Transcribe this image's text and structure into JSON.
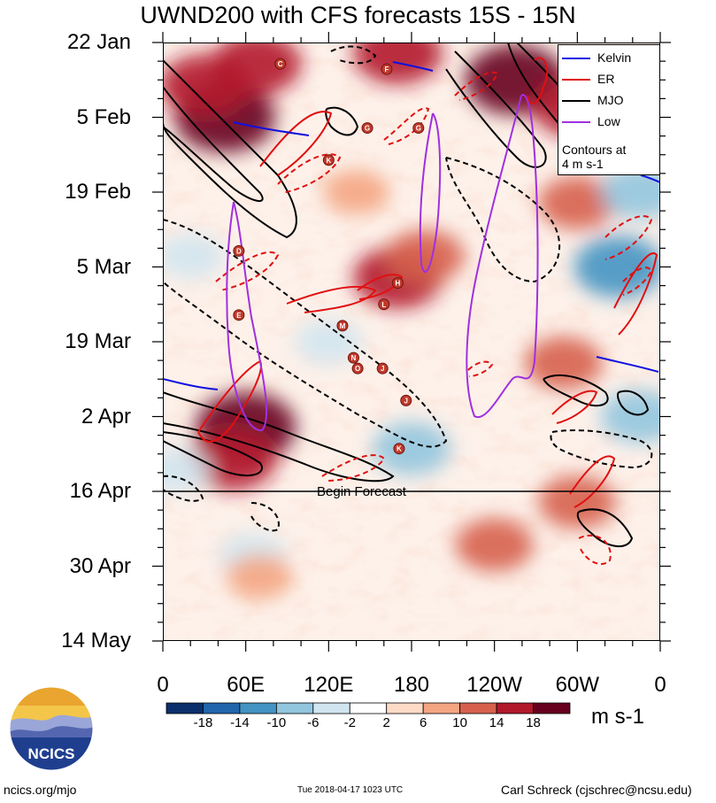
{
  "chart_data": {
    "type": "heatmap",
    "title": "UWND200 with CFS forecasts  15S - 15N",
    "xlabel": "",
    "ylabel": "",
    "x_ticks": [
      "0",
      "60E",
      "120E",
      "180",
      "120W",
      "60W",
      "0"
    ],
    "x_range_deg": [
      0,
      360
    ],
    "y_ticks": [
      "22 Jan",
      "5 Feb",
      "19 Feb",
      "5 Mar",
      "19 Mar",
      "2 Apr",
      "16 Apr",
      "30 Apr",
      "14 May"
    ],
    "y_range_days": [
      0,
      112
    ],
    "colorbar": {
      "ticks": [
        "-18",
        "-14",
        "-10",
        "-6",
        "-2",
        "2",
        "6",
        "10",
        "14",
        "18"
      ],
      "colors": [
        "#0b2f6b",
        "#2166ac",
        "#4393c3",
        "#92c5de",
        "#d1e5f0",
        "#ffffff",
        "#fddbc7",
        "#f4a582",
        "#d6604d",
        "#b2182b",
        "#67001f"
      ],
      "units": "m s-1"
    },
    "anomaly_blobs": [
      {
        "lon": 45,
        "day": 14,
        "value": 18
      },
      {
        "lon": 68,
        "day": 4,
        "value": 14
      },
      {
        "lon": 30,
        "day": 8,
        "value": 14
      },
      {
        "lon": 170,
        "day": 2,
        "value": 14
      },
      {
        "lon": 255,
        "day": 7,
        "value": 18
      },
      {
        "lon": 300,
        "day": 12,
        "value": 14
      },
      {
        "lon": 170,
        "day": 44,
        "value": 14
      },
      {
        "lon": 190,
        "day": 40,
        "value": 10
      },
      {
        "lon": 300,
        "day": 30,
        "value": 10
      },
      {
        "lon": 60,
        "day": 72,
        "value": 18
      },
      {
        "lon": 50,
        "day": 78,
        "value": 14
      },
      {
        "lon": 290,
        "day": 60,
        "value": 10
      },
      {
        "lon": 300,
        "day": 86,
        "value": 10
      },
      {
        "lon": 330,
        "day": 42,
        "value": -14
      },
      {
        "lon": 345,
        "day": 28,
        "value": -10
      },
      {
        "lon": 20,
        "day": 40,
        "value": -6
      },
      {
        "lon": 180,
        "day": 76,
        "value": -10
      },
      {
        "lon": 10,
        "day": 80,
        "value": -6
      },
      {
        "lon": 345,
        "day": 70,
        "value": -10
      },
      {
        "lon": 140,
        "day": 28,
        "value": 6
      },
      {
        "lon": 240,
        "day": 94,
        "value": 10
      },
      {
        "lon": 65,
        "day": 96,
        "value": -6
      },
      {
        "lon": 120,
        "day": 56,
        "value": -6
      },
      {
        "lon": 70,
        "day": 100,
        "value": 6
      }
    ],
    "legend": {
      "entries": [
        {
          "label": "Kelvin",
          "color": "#1010e0"
        },
        {
          "label": "ER",
          "color": "#e01010"
        },
        {
          "label": "MJO",
          "color": "#000000"
        },
        {
          "label": "Low",
          "color": "#a030e0"
        }
      ],
      "note": [
        "Contours at",
        "4 m s-1"
      ],
      "position": "top-right"
    },
    "forecast_start_day": 84,
    "forecast_label": "Begin Forecast",
    "storms": [
      {
        "id": "C",
        "lon": 85,
        "day": 4
      },
      {
        "id": "F",
        "lon": 162,
        "day": 5
      },
      {
        "id": "G",
        "lon": 148,
        "day": 16
      },
      {
        "id": "G",
        "lon": 185,
        "day": 16
      },
      {
        "id": "K",
        "lon": 120,
        "day": 22
      },
      {
        "id": "D",
        "lon": 55,
        "day": 39
      },
      {
        "id": "E",
        "lon": 55,
        "day": 51
      },
      {
        "id": "H",
        "lon": 170,
        "day": 45
      },
      {
        "id": "L",
        "lon": 160,
        "day": 49
      },
      {
        "id": "M",
        "lon": 130,
        "day": 53
      },
      {
        "id": "N",
        "lon": 138,
        "day": 59
      },
      {
        "id": "O",
        "lon": 141,
        "day": 61
      },
      {
        "id": "J",
        "lon": 159,
        "day": 61
      },
      {
        "id": "J",
        "lon": 176,
        "day": 67
      },
      {
        "id": "K",
        "lon": 171,
        "day": 76
      }
    ]
  },
  "footer": {
    "left": "ncics.org/mjo",
    "middle": "Tue 2018-04-17 1023 UTC",
    "right": "Carl Schreck (cjschrec@ncsu.edu)"
  },
  "logo_text": "NCICS"
}
